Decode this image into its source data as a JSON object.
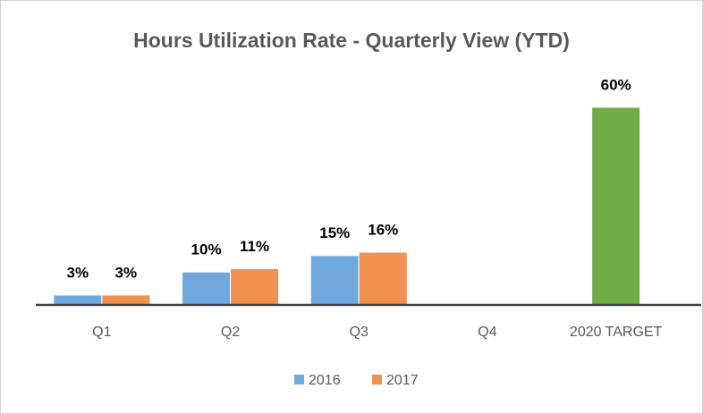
{
  "chart_data": {
    "type": "bar",
    "title": "Hours Utilization Rate - Quarterly View (YTD)",
    "categories": [
      "Q1",
      "Q2",
      "Q3",
      "Q4",
      "2020 TARGET"
    ],
    "series": [
      {
        "name": "2016",
        "color": "#6fa8dc",
        "values": [
          3,
          10,
          15,
          null,
          null
        ],
        "value_labels": [
          "3%",
          "10%",
          "15%",
          null,
          null
        ]
      },
      {
        "name": "2017",
        "color": "#f19150",
        "values": [
          3,
          11,
          16,
          null,
          null
        ],
        "value_labels": [
          "3%",
          "11%",
          "16%",
          null,
          null
        ]
      },
      {
        "color": "#70ad47",
        "values": [
          null,
          null,
          null,
          null,
          60
        ],
        "value_labels": [
          null,
          null,
          null,
          null,
          "60%"
        ]
      }
    ],
    "ylim": [
      0,
      60
    ],
    "legend": "bottom"
  }
}
